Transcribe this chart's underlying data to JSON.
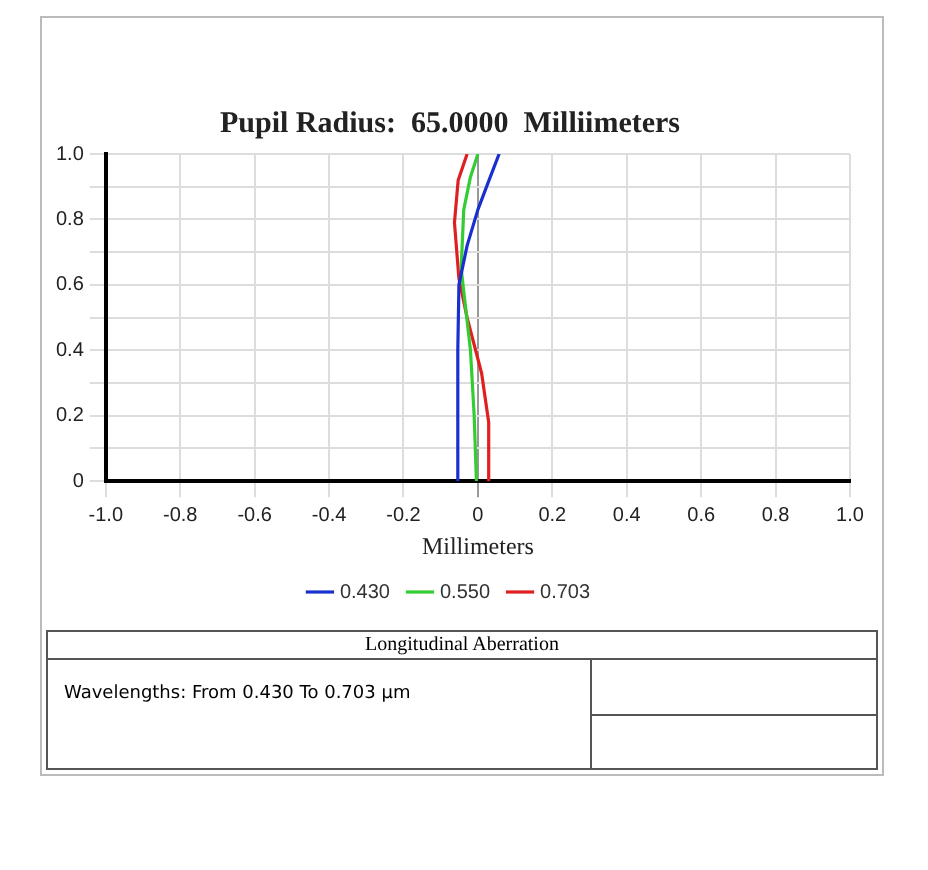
{
  "chart_data": {
    "type": "line",
    "title": "Pupil Radius:  65.0000  Milliimeters",
    "xlabel": "Millimeters",
    "xlim": [
      -1,
      1
    ],
    "xticks": [
      {
        "value": -1,
        "label": "-1.0"
      },
      -0.8,
      -0.6,
      -0.4,
      -0.2,
      0,
      0.2,
      0.4,
      0.6,
      0.8,
      {
        "value": 1,
        "label": "1.0"
      }
    ],
    "ylim": [
      0,
      1
    ],
    "yticks": [
      0,
      {
        "value": 0.1,
        "label": null
      },
      0.2,
      {
        "value": 0.3,
        "label": null
      },
      0.4,
      {
        "value": 0.5,
        "label": null
      },
      0.6,
      {
        "value": 0.7,
        "label": null
      },
      0.8,
      {
        "value": 0.9,
        "label": null
      },
      {
        "value": 1,
        "label": "1.0"
      }
    ],
    "grid": true,
    "legend": "bottom",
    "marker": "none",
    "line_style": "solid",
    "series": [
      {
        "name": "0.430",
        "color": "#1a2fd0",
        "x": [
          -0.055,
          -0.054,
          -0.051,
          -0.029,
          0,
          0.03,
          0.057
        ],
        "values": [
          0,
          0.4,
          0.6,
          0.72,
          0.83,
          0.92,
          1
        ]
      },
      {
        "name": "0.550",
        "color": "#33cc33",
        "x": [
          -0.004,
          -0.01,
          -0.02,
          -0.035,
          -0.045,
          -0.038,
          -0.02,
          0
        ],
        "values": [
          0,
          0.2,
          0.4,
          0.55,
          0.65,
          0.83,
          0.93,
          1
        ]
      },
      {
        "name": "0.703",
        "color": "#e02020",
        "x": [
          0.032,
          0.029,
          0.01,
          -0.029,
          -0.051,
          -0.063,
          -0.053,
          -0.029
        ],
        "values": [
          0,
          0.18,
          0.33,
          0.5,
          0.62,
          0.79,
          0.92,
          1
        ]
      }
    ],
    "annotations": [
      "Longitudinal Aberration",
      "Wavelengths:  From 0.430 To 0.703  µm"
    ]
  }
}
